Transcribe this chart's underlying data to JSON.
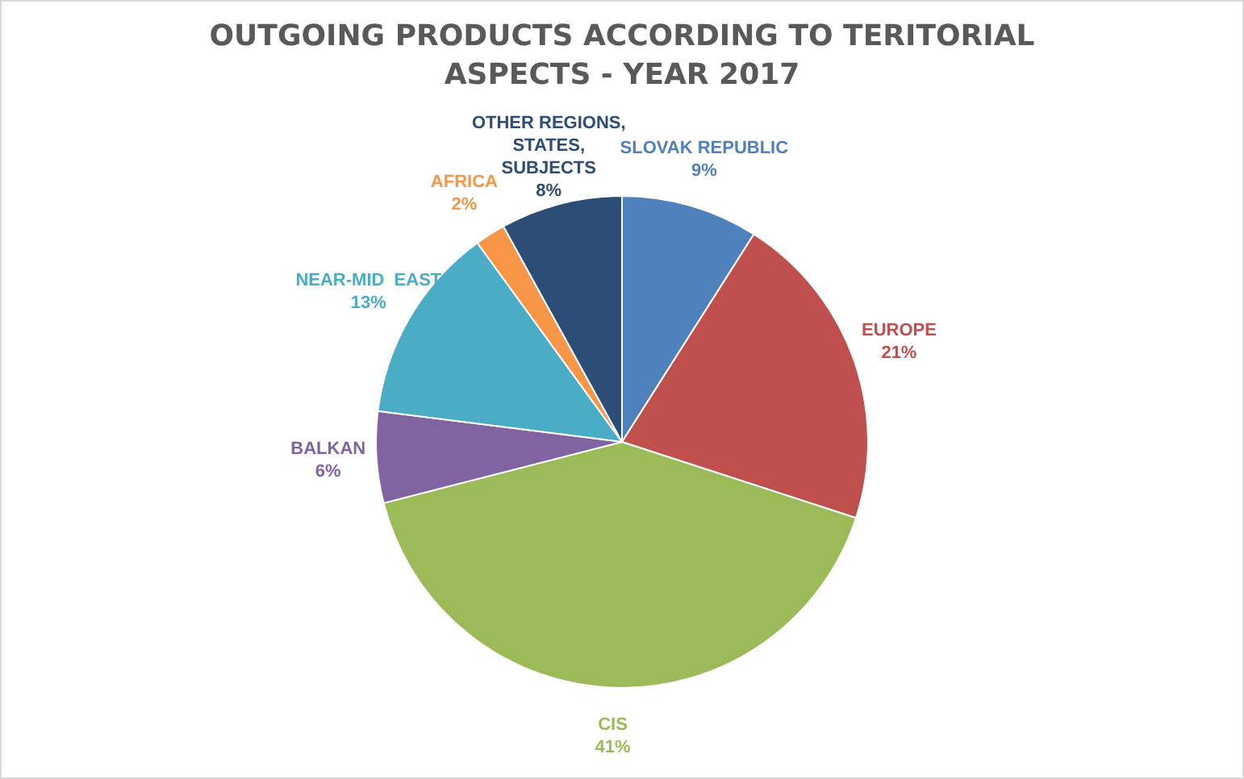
{
  "chart_data": {
    "type": "pie",
    "title": "OUTGOING PRODUCTS ACCORDING TO TERITORIAL ASPECTS - YEAR 2017",
    "categories": [
      "SLOVAK REPUBLIC",
      "EUROPE",
      "CIS",
      "BALKAN",
      "NEAR-MID  EAST",
      "AFRICA",
      "OTHER REGIONS,  STATES, SUBJECTS"
    ],
    "values": [
      9,
      21,
      41,
      6,
      13,
      2,
      8
    ],
    "value_labels": [
      "9%",
      "21%",
      "41%",
      "6%",
      "13%",
      "2%",
      "8%"
    ],
    "colors": [
      "#4f81bd",
      "#c0504d",
      "#9bbb59",
      "#8064a2",
      "#4bacc6",
      "#f79646",
      "#2c4d75"
    ],
    "legend": false
  }
}
